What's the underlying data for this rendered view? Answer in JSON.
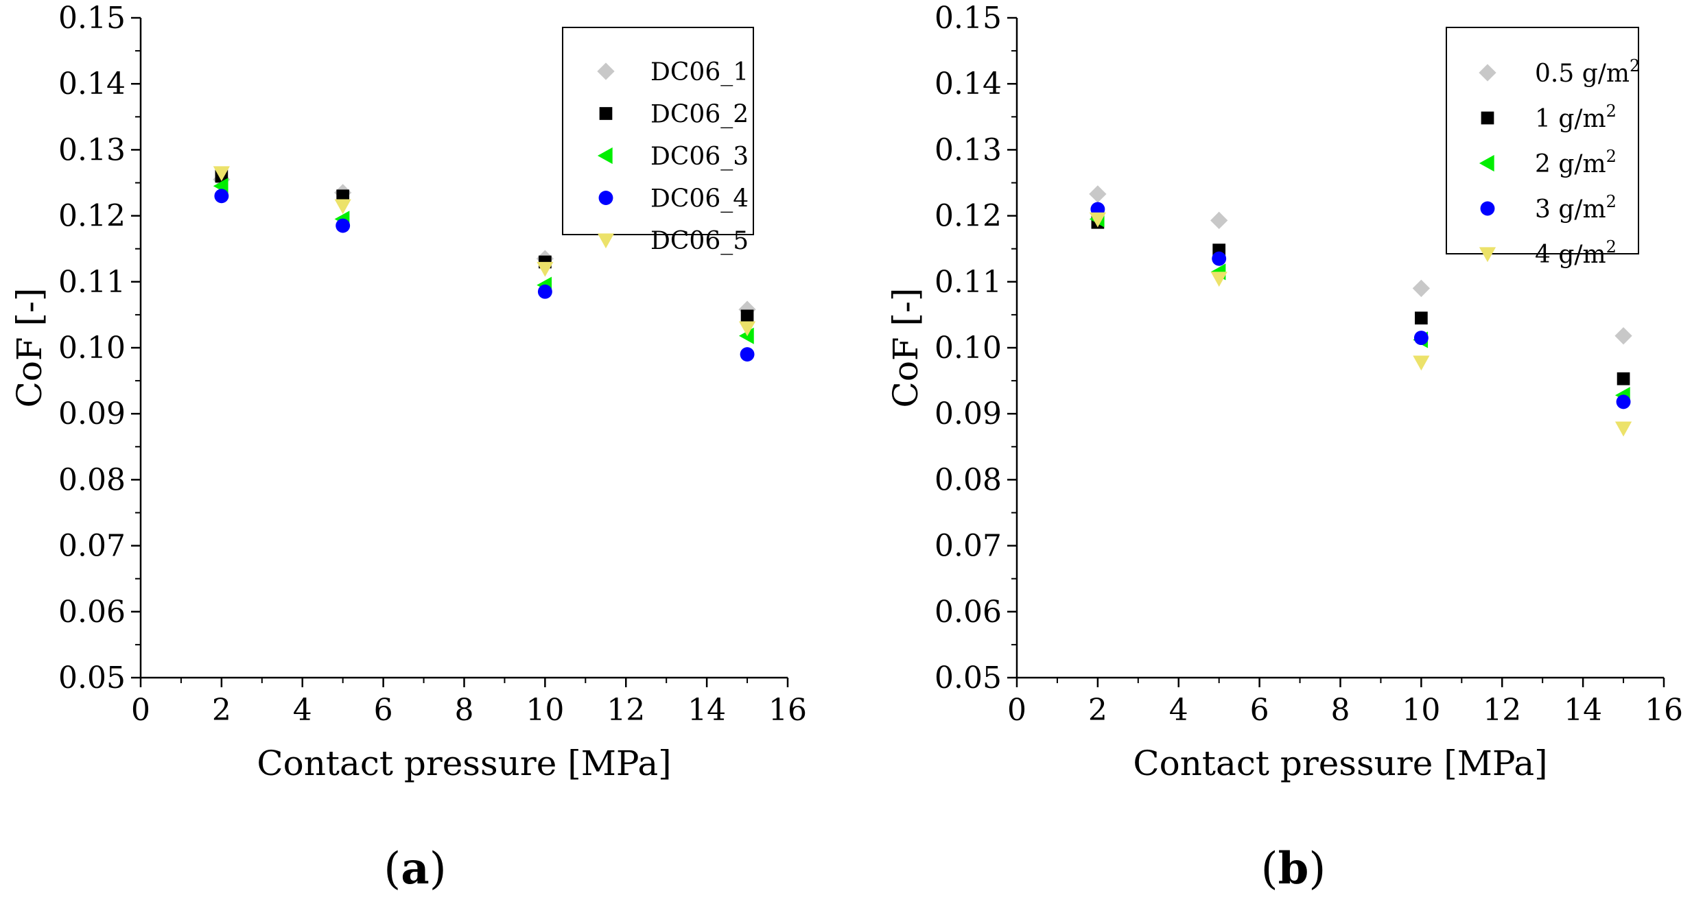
{
  "chart_data": [
    {
      "type": "scatter",
      "panel_label": {
        "open": "(",
        "letter": "a",
        "close": ")"
      },
      "xlabel": "Contact pressure [MPa]",
      "ylabel": "CoF [-]",
      "xlim": [
        0,
        16
      ],
      "ylim": [
        0.05,
        0.15
      ],
      "xticks": [
        "0",
        "2",
        "4",
        "6",
        "8",
        "10",
        "12",
        "14",
        "16"
      ],
      "yticks": [
        "0.05",
        "0.06",
        "0.07",
        "0.08",
        "0.09",
        "0.10",
        "0.11",
        "0.12",
        "0.13",
        "0.14",
        "0.15"
      ],
      "x": [
        2,
        5,
        10,
        15
      ],
      "legend_position": "top-right",
      "series": [
        {
          "name": "DC06_1",
          "marker": "diamond",
          "color": "#c8c8c8",
          "values": [
            0.1255,
            0.1235,
            0.1135,
            0.1058
          ]
        },
        {
          "name": "DC06_2",
          "marker": "square",
          "color": "#000000",
          "values": [
            0.126,
            0.123,
            0.113,
            0.1048
          ]
        },
        {
          "name": "DC06_3",
          "marker": "triangle-left",
          "color": "#00ee00",
          "values": [
            0.1245,
            0.1195,
            0.1095,
            0.1018
          ]
        },
        {
          "name": "DC06_4",
          "marker": "circle",
          "color": "#0000ff",
          "values": [
            0.123,
            0.1185,
            0.1085,
            0.099
          ]
        },
        {
          "name": "DC06_5",
          "marker": "triangle-down",
          "color": "#ece26a",
          "values": [
            0.1265,
            0.1215,
            0.112,
            0.103
          ]
        }
      ]
    },
    {
      "type": "scatter",
      "panel_label": {
        "open": "(",
        "letter": "b",
        "close": ")"
      },
      "xlabel": "Contact pressure [MPa]",
      "ylabel": "CoF [-]",
      "xlim": [
        0,
        16
      ],
      "ylim": [
        0.05,
        0.15
      ],
      "xticks": [
        "0",
        "2",
        "4",
        "6",
        "8",
        "10",
        "12",
        "14",
        "16"
      ],
      "yticks": [
        "0.05",
        "0.06",
        "0.07",
        "0.08",
        "0.09",
        "0.10",
        "0.11",
        "0.12",
        "0.13",
        "0.14",
        "0.15"
      ],
      "x": [
        2,
        5,
        10,
        15
      ],
      "legend_position": "top-right",
      "series": [
        {
          "name": "0.5 g/m",
          "superscript": "2",
          "marker": "diamond",
          "color": "#c8c8c8",
          "values": [
            0.1233,
            0.1193,
            0.109,
            0.1018
          ]
        },
        {
          "name": "1 g/m",
          "superscript": "2",
          "marker": "square",
          "color": "#000000",
          "values": [
            0.119,
            0.1148,
            0.1045,
            0.0953
          ]
        },
        {
          "name": "2 g/m",
          "superscript": "2",
          "marker": "triangle-left",
          "color": "#00ee00",
          "values": [
            0.1195,
            0.1115,
            0.1012,
            0.0928
          ]
        },
        {
          "name": "3 g/m",
          "superscript": "2",
          "marker": "circle",
          "color": "#0000ff",
          "values": [
            0.121,
            0.1135,
            0.1015,
            0.0918
          ]
        },
        {
          "name": "4 g/m",
          "superscript": "2",
          "marker": "triangle-down",
          "color": "#ece26a",
          "values": [
            0.1195,
            0.1105,
            0.0978,
            0.0878
          ]
        }
      ]
    }
  ]
}
